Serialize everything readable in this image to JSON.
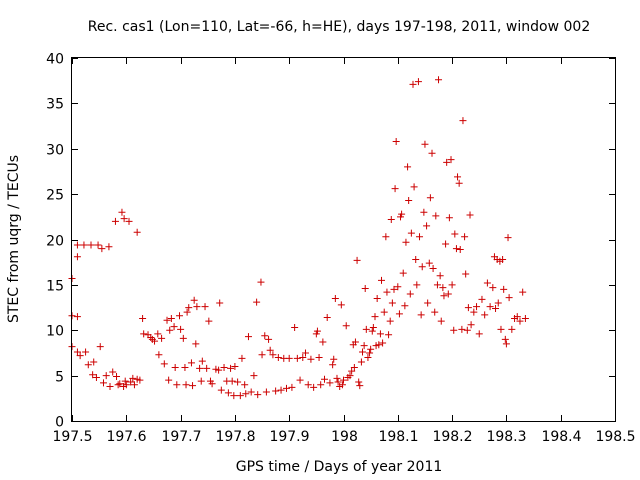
{
  "chart_data": {
    "type": "scatter",
    "title": "Rec. cas1 (Lon=110, Lat=-66, h=HE), days 197-198, 2011, window 002",
    "xlabel": "GPS time / Days of year 2011",
    "ylabel": "STEC from uqrg / TECUs",
    "xlim": [
      197.5,
      198.5
    ],
    "ylim": [
      0,
      40
    ],
    "xticks": [
      "197.5",
      "197.6",
      "197.7",
      "197.8",
      "197.9",
      "198",
      "198.1",
      "198.2",
      "198.3",
      "198.4",
      "198.5"
    ],
    "yticks": [
      "0",
      "5",
      "10",
      "15",
      "20",
      "25",
      "30",
      "35",
      "40"
    ],
    "grid": false,
    "marker": "+",
    "color": "#cc0000",
    "series": [
      {
        "name": "STEC",
        "points": [
          [
            197.5,
            15.7
          ],
          [
            197.5,
            11.6
          ],
          [
            197.5,
            8.2
          ],
          [
            197.51,
            19.4
          ],
          [
            197.51,
            18.1
          ],
          [
            197.51,
            11.5
          ],
          [
            197.51,
            7.6
          ],
          [
            197.515,
            7.2
          ],
          [
            197.522,
            19.4
          ],
          [
            197.525,
            7.6
          ],
          [
            197.53,
            6.2
          ],
          [
            197.535,
            19.4
          ],
          [
            197.538,
            5.1
          ],
          [
            197.54,
            6.5
          ],
          [
            197.545,
            4.8
          ],
          [
            197.548,
            19.4
          ],
          [
            197.552,
            8.2
          ],
          [
            197.555,
            19.0
          ],
          [
            197.558,
            4.2
          ],
          [
            197.563,
            5.0
          ],
          [
            197.568,
            19.2
          ],
          [
            197.57,
            3.8
          ],
          [
            197.575,
            5.4
          ],
          [
            197.58,
            22.0
          ],
          [
            197.582,
            4.9
          ],
          [
            197.585,
            4.0
          ],
          [
            197.588,
            4.1
          ],
          [
            197.592,
            23.0
          ],
          [
            197.596,
            22.3
          ],
          [
            197.595,
            3.8
          ],
          [
            197.598,
            4.4
          ],
          [
            197.6,
            4.0
          ],
          [
            197.605,
            22.0
          ],
          [
            197.608,
            4.3
          ],
          [
            197.612,
            4.7
          ],
          [
            197.615,
            4.0
          ],
          [
            197.62,
            20.8
          ],
          [
            197.62,
            4.6
          ],
          [
            197.625,
            4.5
          ],
          [
            197.63,
            11.3
          ],
          [
            197.632,
            9.6
          ],
          [
            197.64,
            9.5
          ],
          [
            197.645,
            9.2
          ],
          [
            197.648,
            9.0
          ],
          [
            197.652,
            8.8
          ],
          [
            197.658,
            9.6
          ],
          [
            197.66,
            7.3
          ],
          [
            197.665,
            9.1
          ],
          [
            197.67,
            6.3
          ],
          [
            197.675,
            11.1
          ],
          [
            197.678,
            4.5
          ],
          [
            197.68,
            10.0
          ],
          [
            197.683,
            11.3
          ],
          [
            197.688,
            10.4
          ],
          [
            197.69,
            5.9
          ],
          [
            197.693,
            4.0
          ],
          [
            197.698,
            11.6
          ],
          [
            197.7,
            10.1
          ],
          [
            197.705,
            9.1
          ],
          [
            197.708,
            5.9
          ],
          [
            197.71,
            4.0
          ],
          [
            197.712,
            12.0
          ],
          [
            197.715,
            12.5
          ],
          [
            197.72,
            6.4
          ],
          [
            197.722,
            3.9
          ],
          [
            197.725,
            13.3
          ],
          [
            197.728,
            8.5
          ],
          [
            197.73,
            12.6
          ],
          [
            197.735,
            5.8
          ],
          [
            197.738,
            4.4
          ],
          [
            197.74,
            6.6
          ],
          [
            197.745,
            12.6
          ],
          [
            197.748,
            5.8
          ],
          [
            197.752,
            11.0
          ],
          [
            197.755,
            4.4
          ],
          [
            197.758,
            4.1
          ],
          [
            197.765,
            5.7
          ],
          [
            197.77,
            5.6
          ],
          [
            197.772,
            13.0
          ],
          [
            197.775,
            3.4
          ],
          [
            197.78,
            5.9
          ],
          [
            197.785,
            4.4
          ],
          [
            197.788,
            3.1
          ],
          [
            197.792,
            5.8
          ],
          [
            197.795,
            4.4
          ],
          [
            197.798,
            2.8
          ],
          [
            197.8,
            6.0
          ],
          [
            197.805,
            4.3
          ],
          [
            197.81,
            2.8
          ],
          [
            197.813,
            6.9
          ],
          [
            197.818,
            4.0
          ],
          [
            197.82,
            3.0
          ],
          [
            197.825,
            9.3
          ],
          [
            197.83,
            3.2
          ],
          [
            197.835,
            5.0
          ],
          [
            197.84,
            13.1
          ],
          [
            197.842,
            2.9
          ],
          [
            197.848,
            15.3
          ],
          [
            197.85,
            7.3
          ],
          [
            197.855,
            9.4
          ],
          [
            197.858,
            3.2
          ],
          [
            197.862,
            9.0
          ],
          [
            197.865,
            7.8
          ],
          [
            197.87,
            7.3
          ],
          [
            197.875,
            3.3
          ],
          [
            197.88,
            7.0
          ],
          [
            197.885,
            3.4
          ],
          [
            197.89,
            6.9
          ],
          [
            197.895,
            3.6
          ],
          [
            197.9,
            6.9
          ],
          [
            197.905,
            3.7
          ],
          [
            197.91,
            10.3
          ],
          [
            197.915,
            6.9
          ],
          [
            197.92,
            4.5
          ],
          [
            197.925,
            7.0
          ],
          [
            197.93,
            7.5
          ],
          [
            197.935,
            4.0
          ],
          [
            197.94,
            6.8
          ],
          [
            197.945,
            3.7
          ],
          [
            197.95,
            9.6
          ],
          [
            197.952,
            9.9
          ],
          [
            197.955,
            7.0
          ],
          [
            197.958,
            4.0
          ],
          [
            197.962,
            8.7
          ],
          [
            197.965,
            4.6
          ],
          [
            197.97,
            11.4
          ],
          [
            197.975,
            4.2
          ],
          [
            197.98,
            6.2
          ],
          [
            197.982,
            6.8
          ],
          [
            197.985,
            13.5
          ],
          [
            197.988,
            4.7
          ],
          [
            197.99,
            4.3
          ],
          [
            197.993,
            3.8
          ],
          [
            197.996,
            12.8
          ],
          [
            197.998,
            4.0
          ],
          [
            198.0,
            4.5
          ],
          [
            198.005,
            10.5
          ],
          [
            198.008,
            4.8
          ],
          [
            198.012,
            5.0
          ],
          [
            198.015,
            5.5
          ],
          [
            198.018,
            8.4
          ],
          [
            198.02,
            5.9
          ],
          [
            198.022,
            8.7
          ],
          [
            198.025,
            17.7
          ],
          [
            198.028,
            4.3
          ],
          [
            198.03,
            3.9
          ],
          [
            198.033,
            6.5
          ],
          [
            198.035,
            7.6
          ],
          [
            198.038,
            8.3
          ],
          [
            198.04,
            14.6
          ],
          [
            198.042,
            10.1
          ],
          [
            198.045,
            7.0
          ],
          [
            198.048,
            7.5
          ],
          [
            198.05,
            7.9
          ],
          [
            198.053,
            9.9
          ],
          [
            198.055,
            10.3
          ],
          [
            198.058,
            11.5
          ],
          [
            198.06,
            8.3
          ],
          [
            198.062,
            13.5
          ],
          [
            198.065,
            8.4
          ],
          [
            198.068,
            9.6
          ],
          [
            198.07,
            15.5
          ],
          [
            198.072,
            8.6
          ],
          [
            198.075,
            12.0
          ],
          [
            198.078,
            20.3
          ],
          [
            198.08,
            14.2
          ],
          [
            198.083,
            9.5
          ],
          [
            198.086,
            11.0
          ],
          [
            198.088,
            22.2
          ],
          [
            198.09,
            13.0
          ],
          [
            198.093,
            14.5
          ],
          [
            198.095,
            25.6
          ],
          [
            198.097,
            30.8
          ],
          [
            198.1,
            14.8
          ],
          [
            198.103,
            11.8
          ],
          [
            198.105,
            22.5
          ],
          [
            198.107,
            22.8
          ],
          [
            198.11,
            16.3
          ],
          [
            198.113,
            12.7
          ],
          [
            198.115,
            19.7
          ],
          [
            198.118,
            28.0
          ],
          [
            198.12,
            24.3
          ],
          [
            198.123,
            14.0
          ],
          [
            198.125,
            20.7
          ],
          [
            198.128,
            37.1
          ],
          [
            198.13,
            25.8
          ],
          [
            198.133,
            17.8
          ],
          [
            198.135,
            15.0
          ],
          [
            198.138,
            37.4
          ],
          [
            198.14,
            20.3
          ],
          [
            198.143,
            11.7
          ],
          [
            198.145,
            17.0
          ],
          [
            198.148,
            23.0
          ],
          [
            198.15,
            30.5
          ],
          [
            198.153,
            21.5
          ],
          [
            198.155,
            13.0
          ],
          [
            198.158,
            17.4
          ],
          [
            198.16,
            24.6
          ],
          [
            198.163,
            29.5
          ],
          [
            198.165,
            16.8
          ],
          [
            198.168,
            12.0
          ],
          [
            198.17,
            22.6
          ],
          [
            198.173,
            15.0
          ],
          [
            198.175,
            37.6
          ],
          [
            198.178,
            16.0
          ],
          [
            198.18,
            11.0
          ],
          [
            198.183,
            14.7
          ],
          [
            198.185,
            13.8
          ],
          [
            198.188,
            19.5
          ],
          [
            198.19,
            28.5
          ],
          [
            198.193,
            14.0
          ],
          [
            198.195,
            22.4
          ],
          [
            198.198,
            28.8
          ],
          [
            198.2,
            15.0
          ],
          [
            198.203,
            10.0
          ],
          [
            198.205,
            20.6
          ],
          [
            198.208,
            19.0
          ],
          [
            198.21,
            26.9
          ],
          [
            198.213,
            26.2
          ],
          [
            198.215,
            18.9
          ],
          [
            198.218,
            10.1
          ],
          [
            198.22,
            33.1
          ],
          [
            198.223,
            20.3
          ],
          [
            198.225,
            16.2
          ],
          [
            198.228,
            10.0
          ],
          [
            198.23,
            12.5
          ],
          [
            198.233,
            22.7
          ],
          [
            198.235,
            10.6
          ],
          [
            198.24,
            12.0
          ],
          [
            198.245,
            12.6
          ],
          [
            198.25,
            9.6
          ],
          [
            198.255,
            13.4
          ],
          [
            198.26,
            11.7
          ],
          [
            198.265,
            15.2
          ],
          [
            198.27,
            12.6
          ],
          [
            198.275,
            14.7
          ],
          [
            198.278,
            18.1
          ],
          [
            198.28,
            12.4
          ],
          [
            198.283,
            17.8
          ],
          [
            198.285,
            13.0
          ],
          [
            198.288,
            17.6
          ],
          [
            198.29,
            10.1
          ],
          [
            198.293,
            17.8
          ],
          [
            198.295,
            14.5
          ],
          [
            198.298,
            9.0
          ],
          [
            198.3,
            8.5
          ],
          [
            198.303,
            20.2
          ],
          [
            198.305,
            13.6
          ],
          [
            198.31,
            10.1
          ],
          [
            198.315,
            11.3
          ],
          [
            198.32,
            11.5
          ],
          [
            198.325,
            11.0
          ],
          [
            198.33,
            14.2
          ],
          [
            198.335,
            11.3
          ]
        ]
      }
    ]
  }
}
